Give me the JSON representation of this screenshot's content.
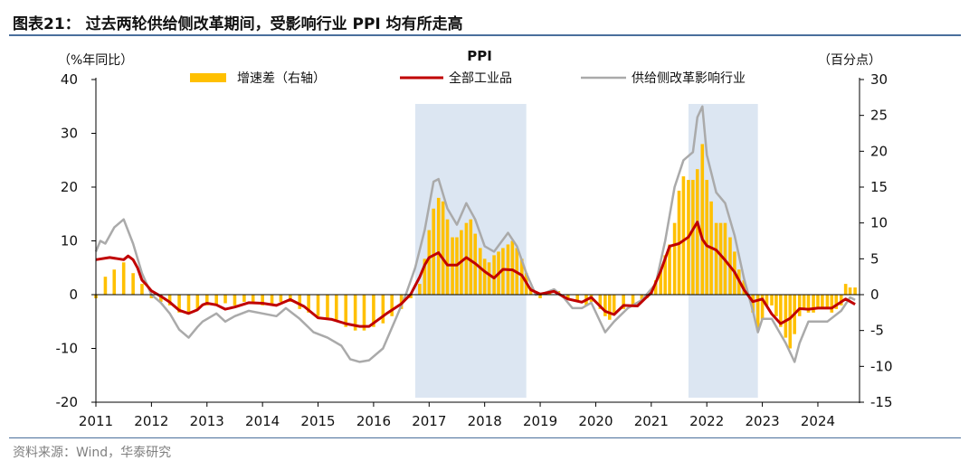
{
  "figure_title": "图表21： 过去两轮供给侧改革期间，受影响行业 PPI 均有所走高",
  "source_note": "资料来源：Wind，华泰研究",
  "colors": {
    "bar": "#ffc000",
    "line_all": "#c00000",
    "line_supply": "#aaaaaa",
    "shade": "#dce6f2",
    "rule": "#4a6f9c"
  },
  "chart_data": {
    "type": "line",
    "title": "PPI",
    "left_axis": {
      "label": "（%年同比）",
      "ticks": [
        40,
        30,
        20,
        10,
        0,
        -10,
        -20
      ],
      "range": [
        -20,
        40
      ]
    },
    "right_axis": {
      "label": "（百分点）",
      "ticks": [
        30,
        25,
        20,
        15,
        10,
        5,
        0,
        -5,
        -10,
        -15
      ],
      "range": [
        -15,
        30
      ]
    },
    "x_axis": {
      "ticks": [
        "2011",
        "2012",
        "2013",
        "2014",
        "2015",
        "2016",
        "2017",
        "2018",
        "2019",
        "2020",
        "2021",
        "2022",
        "2023",
        "2024"
      ],
      "range": [
        2011.0,
        2024.75
      ]
    },
    "legend": {
      "position": "top",
      "items": [
        "增速差（右轴）",
        "全部工业品",
        "供给侧改革影响行业"
      ]
    },
    "shaded_periods": [
      [
        2016.75,
        2018.75
      ],
      [
        2021.67,
        2022.92
      ]
    ],
    "series_all": {
      "name": "全部工业品",
      "axis": "left",
      "points": [
        [
          2011.0,
          6.5
        ],
        [
          2011.25,
          6.9
        ],
        [
          2011.5,
          6.5
        ],
        [
          2011.58,
          7.2
        ],
        [
          2011.67,
          6.5
        ],
        [
          2011.75,
          5.0
        ],
        [
          2011.83,
          2.7
        ],
        [
          2011.92,
          1.7
        ],
        [
          2012.0,
          0.7
        ],
        [
          2012.17,
          -0.3
        ],
        [
          2012.33,
          -1.4
        ],
        [
          2012.5,
          -2.9
        ],
        [
          2012.67,
          -3.5
        ],
        [
          2012.83,
          -2.8
        ],
        [
          2012.92,
          -1.9
        ],
        [
          2013.0,
          -1.6
        ],
        [
          2013.17,
          -1.9
        ],
        [
          2013.33,
          -2.7
        ],
        [
          2013.5,
          -2.3
        ],
        [
          2013.75,
          -1.5
        ],
        [
          2014.0,
          -1.6
        ],
        [
          2014.25,
          -2.0
        ],
        [
          2014.5,
          -0.9
        ],
        [
          2014.75,
          -2.2
        ],
        [
          2015.0,
          -4.3
        ],
        [
          2015.25,
          -4.6
        ],
        [
          2015.5,
          -5.4
        ],
        [
          2015.75,
          -5.9
        ],
        [
          2015.92,
          -5.9
        ],
        [
          2016.25,
          -3.4
        ],
        [
          2016.5,
          -1.7
        ],
        [
          2016.67,
          0.1
        ],
        [
          2016.83,
          3.3
        ],
        [
          2016.92,
          5.5
        ],
        [
          2017.0,
          6.9
        ],
        [
          2017.17,
          7.8
        ],
        [
          2017.33,
          5.5
        ],
        [
          2017.5,
          5.5
        ],
        [
          2017.67,
          6.9
        ],
        [
          2017.83,
          5.8
        ],
        [
          2018.0,
          4.3
        ],
        [
          2018.17,
          3.1
        ],
        [
          2018.33,
          4.7
        ],
        [
          2018.5,
          4.6
        ],
        [
          2018.67,
          3.6
        ],
        [
          2018.83,
          0.9
        ],
        [
          2019.0,
          0.1
        ],
        [
          2019.25,
          0.6
        ],
        [
          2019.5,
          -0.8
        ],
        [
          2019.75,
          -1.4
        ],
        [
          2019.92,
          -0.5
        ],
        [
          2020.17,
          -3.1
        ],
        [
          2020.33,
          -3.7
        ],
        [
          2020.5,
          -2.0
        ],
        [
          2020.75,
          -2.1
        ],
        [
          2020.92,
          -0.4
        ],
        [
          2021.0,
          0.3
        ],
        [
          2021.17,
          4.4
        ],
        [
          2021.33,
          9.0
        ],
        [
          2021.5,
          9.5
        ],
        [
          2021.67,
          10.7
        ],
        [
          2021.83,
          13.5
        ],
        [
          2021.92,
          10.3
        ],
        [
          2022.0,
          9.1
        ],
        [
          2022.17,
          8.3
        ],
        [
          2022.33,
          6.4
        ],
        [
          2022.5,
          4.2
        ],
        [
          2022.67,
          0.9
        ],
        [
          2022.83,
          -1.3
        ],
        [
          2023.0,
          -0.8
        ],
        [
          2023.17,
          -3.6
        ],
        [
          2023.33,
          -5.4
        ],
        [
          2023.5,
          -4.4
        ],
        [
          2023.67,
          -2.6
        ],
        [
          2023.83,
          -2.7
        ],
        [
          2024.0,
          -2.5
        ],
        [
          2024.25,
          -2.5
        ],
        [
          2024.5,
          -0.8
        ],
        [
          2024.67,
          -1.8
        ]
      ]
    },
    "series_supply": {
      "name": "供给侧改革影响行业",
      "axis": "left",
      "points": [
        [
          2011.0,
          8.0
        ],
        [
          2011.08,
          10.0
        ],
        [
          2011.17,
          9.5
        ],
        [
          2011.33,
          12.5
        ],
        [
          2011.5,
          14.0
        ],
        [
          2011.67,
          9.5
        ],
        [
          2011.83,
          4.0
        ],
        [
          2012.0,
          0.0
        ],
        [
          2012.17,
          -1.5
        ],
        [
          2012.33,
          -3.5
        ],
        [
          2012.5,
          -6.5
        ],
        [
          2012.67,
          -8.0
        ],
        [
          2012.83,
          -6.0
        ],
        [
          2012.92,
          -5.0
        ],
        [
          2013.17,
          -3.5
        ],
        [
          2013.33,
          -5.0
        ],
        [
          2013.5,
          -4.0
        ],
        [
          2013.75,
          -3.0
        ],
        [
          2014.0,
          -3.5
        ],
        [
          2014.25,
          -4.0
        ],
        [
          2014.42,
          -2.5
        ],
        [
          2014.67,
          -4.5
        ],
        [
          2014.92,
          -7.0
        ],
        [
          2015.17,
          -8.0
        ],
        [
          2015.42,
          -9.5
        ],
        [
          2015.58,
          -12.0
        ],
        [
          2015.75,
          -12.5
        ],
        [
          2015.92,
          -12.2
        ],
        [
          2016.17,
          -10.0
        ],
        [
          2016.42,
          -4.0
        ],
        [
          2016.58,
          0.0
        ],
        [
          2016.75,
          5.0
        ],
        [
          2016.92,
          12.0
        ],
        [
          2017.08,
          21.0
        ],
        [
          2017.17,
          21.5
        ],
        [
          2017.33,
          16.0
        ],
        [
          2017.5,
          13.0
        ],
        [
          2017.67,
          17.0
        ],
        [
          2017.83,
          14.0
        ],
        [
          2018.0,
          9.0
        ],
        [
          2018.17,
          8.0
        ],
        [
          2018.42,
          11.5
        ],
        [
          2018.58,
          9.0
        ],
        [
          2018.75,
          4.0
        ],
        [
          2018.92,
          0.0
        ],
        [
          2019.08,
          0.3
        ],
        [
          2019.25,
          1.0
        ],
        [
          2019.42,
          -0.5
        ],
        [
          2019.58,
          -2.5
        ],
        [
          2019.75,
          -2.5
        ],
        [
          2019.92,
          -1.5
        ],
        [
          2020.17,
          -7.0
        ],
        [
          2020.33,
          -5.0
        ],
        [
          2020.58,
          -2.5
        ],
        [
          2020.83,
          -1.0
        ],
        [
          2021.08,
          2.0
        ],
        [
          2021.25,
          10.0
        ],
        [
          2021.42,
          20.0
        ],
        [
          2021.58,
          25.0
        ],
        [
          2021.75,
          26.5
        ],
        [
          2021.83,
          33.0
        ],
        [
          2021.92,
          35.0
        ],
        [
          2022.0,
          26.0
        ],
        [
          2022.17,
          19.0
        ],
        [
          2022.33,
          17.0
        ],
        [
          2022.5,
          11.0
        ],
        [
          2022.67,
          3.0
        ],
        [
          2022.83,
          -3.0
        ],
        [
          2022.92,
          -7.0
        ],
        [
          2023.0,
          -4.5
        ],
        [
          2023.17,
          -4.5
        ],
        [
          2023.42,
          -9.0
        ],
        [
          2023.58,
          -12.5
        ],
        [
          2023.67,
          -9.0
        ],
        [
          2023.83,
          -5.0
        ],
        [
          2024.17,
          -5.0
        ],
        [
          2024.42,
          -3.0
        ],
        [
          2024.58,
          -0.5
        ],
        [
          2024.67,
          -1.0
        ]
      ]
    },
    "series_diff": {
      "name": "增速差（右轴）",
      "axis": "right",
      "type": "bar",
      "points": [
        [
          2011.0,
          -0.5
        ],
        [
          2011.17,
          2.5
        ],
        [
          2011.33,
          3.5
        ],
        [
          2011.5,
          4.5
        ],
        [
          2011.67,
          3.0
        ],
        [
          2011.83,
          1.5
        ],
        [
          2012.0,
          -0.5
        ],
        [
          2012.17,
          -1.0
        ],
        [
          2012.33,
          -1.5
        ],
        [
          2012.5,
          -2.5
        ],
        [
          2012.67,
          -2.5
        ],
        [
          2012.83,
          -2.0
        ],
        [
          2013.0,
          -1.5
        ],
        [
          2013.17,
          -1.5
        ],
        [
          2013.33,
          -1.2
        ],
        [
          2013.5,
          -1.5
        ],
        [
          2013.67,
          -1.0
        ],
        [
          2013.83,
          -1.0
        ],
        [
          2014.0,
          -1.5
        ],
        [
          2014.17,
          -1.5
        ],
        [
          2014.33,
          -1.0
        ],
        [
          2014.5,
          -1.0
        ],
        [
          2014.67,
          -2.0
        ],
        [
          2014.83,
          -2.5
        ],
        [
          2015.0,
          -3.0
        ],
        [
          2015.17,
          -3.2
        ],
        [
          2015.33,
          -3.5
        ],
        [
          2015.5,
          -4.5
        ],
        [
          2015.67,
          -5.0
        ],
        [
          2015.83,
          -5.0
        ],
        [
          2016.0,
          -4.5
        ],
        [
          2016.17,
          -4.0
        ],
        [
          2016.33,
          -3.0
        ],
        [
          2016.5,
          -2.0
        ],
        [
          2016.67,
          -0.5
        ],
        [
          2016.83,
          1.5
        ],
        [
          2016.92,
          5.0
        ],
        [
          2017.0,
          9.0
        ],
        [
          2017.08,
          12.0
        ],
        [
          2017.17,
          13.5
        ],
        [
          2017.25,
          13.0
        ],
        [
          2017.33,
          10.5
        ],
        [
          2017.42,
          8.0
        ],
        [
          2017.5,
          8.0
        ],
        [
          2017.58,
          9.0
        ],
        [
          2017.67,
          10.0
        ],
        [
          2017.75,
          10.5
        ],
        [
          2017.83,
          8.5
        ],
        [
          2017.92,
          6.5
        ],
        [
          2018.0,
          5.0
        ],
        [
          2018.08,
          4.5
        ],
        [
          2018.17,
          5.5
        ],
        [
          2018.25,
          6.0
        ],
        [
          2018.33,
          6.5
        ],
        [
          2018.42,
          7.0
        ],
        [
          2018.5,
          7.5
        ],
        [
          2018.58,
          6.5
        ],
        [
          2018.67,
          5.0
        ],
        [
          2018.75,
          3.0
        ],
        [
          2018.83,
          1.0
        ],
        [
          2018.92,
          0.0
        ],
        [
          2019.0,
          -0.5
        ],
        [
          2019.17,
          0.5
        ],
        [
          2019.33,
          0.5
        ],
        [
          2019.5,
          -0.5
        ],
        [
          2019.67,
          -1.0
        ],
        [
          2019.83,
          -1.5
        ],
        [
          2019.92,
          -1.0
        ],
        [
          2020.08,
          -2.0
        ],
        [
          2020.17,
          -3.0
        ],
        [
          2020.25,
          -3.5
        ],
        [
          2020.33,
          -2.5
        ],
        [
          2020.5,
          -2.0
        ],
        [
          2020.67,
          -1.5
        ],
        [
          2020.83,
          -1.0
        ],
        [
          2020.92,
          -0.5
        ],
        [
          2021.0,
          0.5
        ],
        [
          2021.08,
          2.0
        ],
        [
          2021.17,
          3.5
        ],
        [
          2021.25,
          5.5
        ],
        [
          2021.33,
          7.0
        ],
        [
          2021.42,
          10.0
        ],
        [
          2021.5,
          14.5
        ],
        [
          2021.58,
          16.5
        ],
        [
          2021.67,
          16.0
        ],
        [
          2021.75,
          16.0
        ],
        [
          2021.83,
          17.5
        ],
        [
          2021.92,
          21.0
        ],
        [
          2022.0,
          16.0
        ],
        [
          2022.08,
          13.0
        ],
        [
          2022.17,
          10.0
        ],
        [
          2022.25,
          10.0
        ],
        [
          2022.33,
          10.0
        ],
        [
          2022.42,
          8.0
        ],
        [
          2022.5,
          6.0
        ],
        [
          2022.58,
          3.5
        ],
        [
          2022.67,
          2.0
        ],
        [
          2022.75,
          0.0
        ],
        [
          2022.83,
          -2.5
        ],
        [
          2022.92,
          -5.0
        ],
        [
          2023.0,
          -3.5
        ],
        [
          2023.08,
          -1.5
        ],
        [
          2023.17,
          -1.5
        ],
        [
          2023.25,
          -3.0
        ],
        [
          2023.33,
          -4.5
        ],
        [
          2023.42,
          -6.0
        ],
        [
          2023.5,
          -7.5
        ],
        [
          2023.58,
          -5.5
        ],
        [
          2023.67,
          -3.0
        ],
        [
          2023.75,
          -2.0
        ],
        [
          2023.83,
          -2.5
        ],
        [
          2023.92,
          -2.5
        ],
        [
          2024.0,
          -2.0
        ],
        [
          2024.08,
          -2.0
        ],
        [
          2024.17,
          -2.0
        ],
        [
          2024.25,
          -2.5
        ],
        [
          2024.33,
          -2.0
        ],
        [
          2024.42,
          -1.5
        ],
        [
          2024.5,
          1.5
        ],
        [
          2024.58,
          1.0
        ],
        [
          2024.67,
          1.0
        ]
      ]
    }
  }
}
